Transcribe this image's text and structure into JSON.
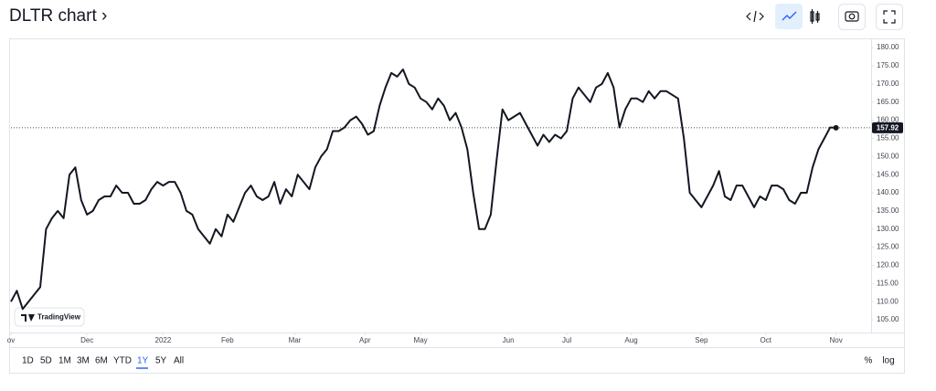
{
  "header": {
    "title": "DLTR chart ›"
  },
  "chart_data": {
    "type": "line",
    "series": [
      {
        "name": "DLTR",
        "color": "#131722",
        "values": [
          110,
          113,
          108,
          110,
          112,
          114,
          130,
          133,
          135,
          133,
          145,
          147,
          138,
          134,
          135,
          138,
          139,
          139,
          142,
          140,
          140,
          137,
          137,
          138,
          141,
          143,
          142,
          143,
          143,
          140,
          135,
          134,
          130,
          128,
          126,
          130,
          128,
          134,
          132,
          136,
          140,
          142,
          139,
          138,
          139,
          143,
          137,
          141,
          139,
          145,
          143,
          141,
          147,
          150,
          152,
          157,
          157,
          158,
          160,
          161,
          159,
          156,
          157,
          164,
          169,
          173,
          172,
          174,
          170,
          169,
          166,
          165,
          163,
          166,
          164,
          160,
          162,
          158,
          152,
          140,
          130,
          130,
          134,
          149,
          163,
          160,
          161,
          162,
          159,
          156,
          153,
          156,
          154,
          156,
          155,
          157,
          166,
          169,
          167,
          165,
          169,
          170,
          173,
          169,
          158,
          163,
          166,
          166,
          165,
          168,
          166,
          168,
          168,
          167,
          166,
          155,
          140,
          138,
          136,
          139,
          142,
          146,
          139,
          138,
          142,
          142,
          139,
          136,
          139,
          138,
          142,
          142,
          141,
          138,
          137,
          140,
          140,
          147,
          152,
          155,
          158,
          157.92
        ]
      }
    ],
    "xlim": [
      0,
      147
    ],
    "xticks": [
      {
        "value": 0,
        "label": "ov"
      },
      {
        "value": 13,
        "label": "Dec"
      },
      {
        "value": 26,
        "label": "2022"
      },
      {
        "value": 37,
        "label": "Feb"
      },
      {
        "value": 48.5,
        "label": "Mar"
      },
      {
        "value": 60.5,
        "label": "Apr"
      },
      {
        "value": 70,
        "label": "May"
      },
      {
        "value": 85,
        "label": "Jun"
      },
      {
        "value": 95,
        "label": "Jul"
      },
      {
        "value": 106,
        "label": "Aug"
      },
      {
        "value": 118,
        "label": "Sep"
      },
      {
        "value": 129,
        "label": "Oct"
      },
      {
        "value": 141,
        "label": "Nov"
      }
    ],
    "ylim": [
      101.5,
      182.3
    ],
    "yticks": [
      {
        "value": 105,
        "label": "105.00"
      },
      {
        "value": 110,
        "label": "110.00"
      },
      {
        "value": 115,
        "label": "115.00"
      },
      {
        "value": 120,
        "label": "120.00"
      },
      {
        "value": 125,
        "label": "125.00"
      },
      {
        "value": 130,
        "label": "130.00"
      },
      {
        "value": 135,
        "label": "135.00"
      },
      {
        "value": 140,
        "label": "140.00"
      },
      {
        "value": 145,
        "label": "145.00"
      },
      {
        "value": 150,
        "label": "150.00"
      },
      {
        "value": 155,
        "label": "155.00"
      },
      {
        "value": 160,
        "label": "160.00"
      },
      {
        "value": 165,
        "label": "165.00"
      },
      {
        "value": 170,
        "label": "170.00"
      },
      {
        "value": 175,
        "label": "175.00"
      },
      {
        "value": 180,
        "label": "180.00"
      }
    ],
    "grid": false,
    "watermark": "TradingView"
  },
  "toolbar": {
    "ranges": [
      "1D",
      "5D",
      "1M",
      "3M",
      "6M",
      "YTD",
      "1Y",
      "5Y",
      "All"
    ],
    "selected_range": "1Y",
    "percent": "%",
    "log": "log"
  }
}
